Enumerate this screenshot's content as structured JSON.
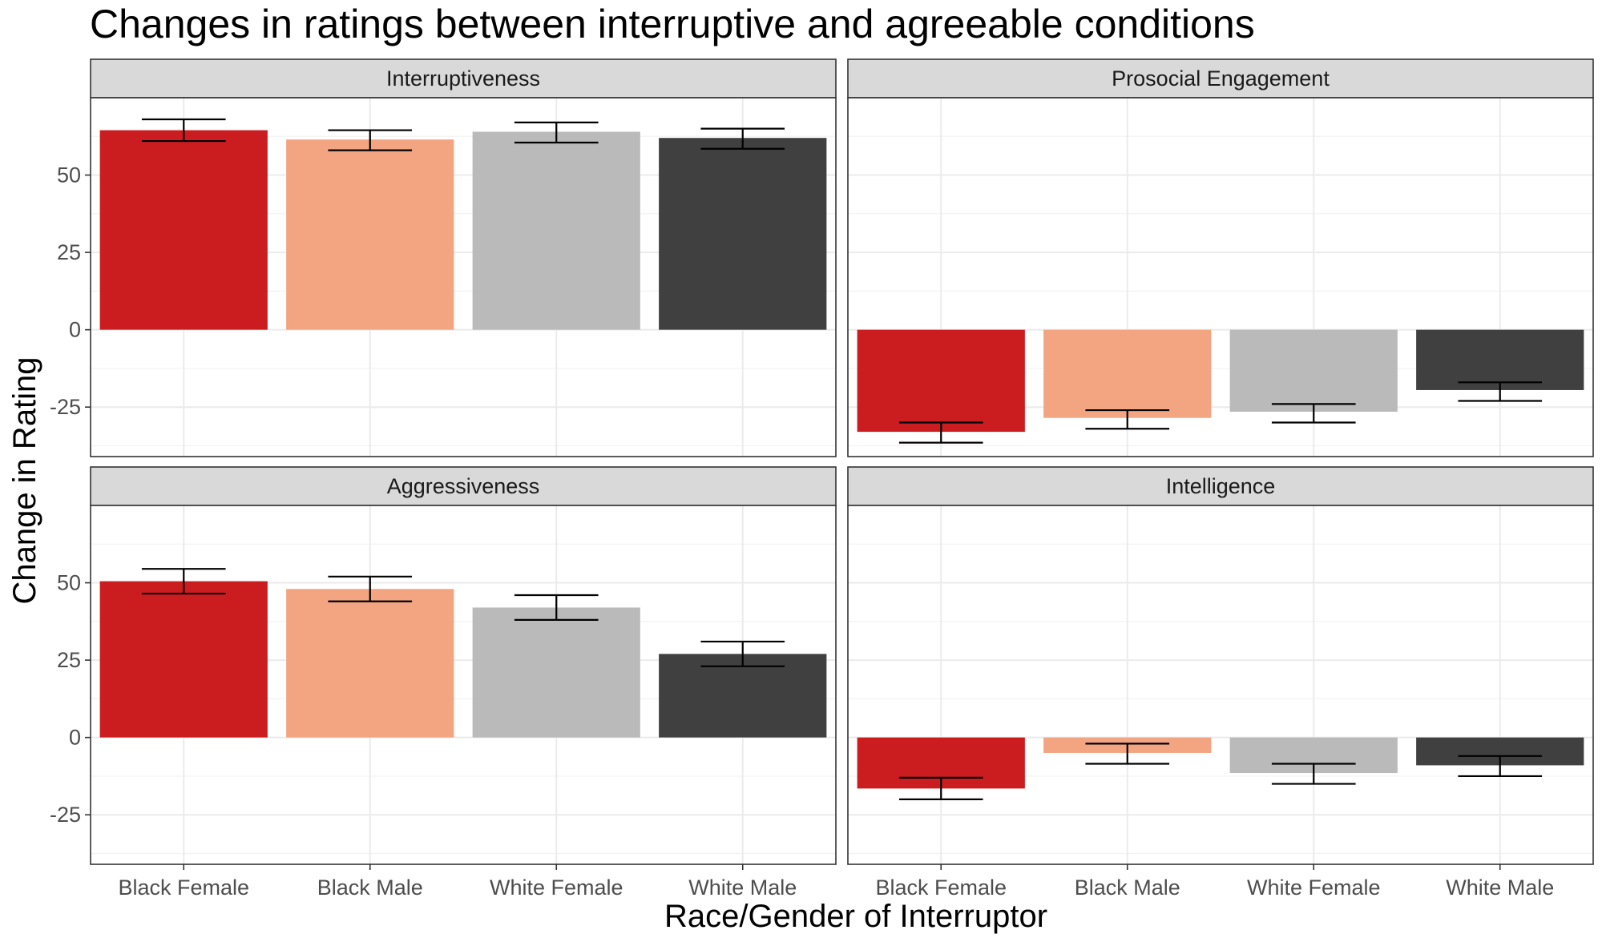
{
  "chart_data": {
    "type": "bar",
    "title": "Changes in ratings between interruptive and agreeable conditions",
    "xlabel": "Race/Gender of Interruptor",
    "ylabel": "Change in Rating",
    "categories": [
      "Black Female",
      "Black Male",
      "White Female",
      "White Male"
    ],
    "colors": [
      "#CB1D20",
      "#F3A582",
      "#BABABA",
      "#404040"
    ],
    "yticks": [
      -25,
      0,
      25,
      50
    ],
    "ylim": [
      -41,
      75
    ],
    "grid": true,
    "legend": "none",
    "panels": [
      {
        "name": "Interruptiveness",
        "values": [
          64.5,
          61.5,
          64,
          62
        ],
        "error_low": [
          61,
          58,
          60.5,
          58.5
        ],
        "error_high": [
          68,
          64.5,
          67,
          65
        ]
      },
      {
        "name": "Prosocial Engagement",
        "values": [
          -33,
          -28.5,
          -26.5,
          -19.5
        ],
        "error_low": [
          -36.5,
          -32,
          -30,
          -23
        ],
        "error_high": [
          -30,
          -26,
          -24,
          -17
        ]
      },
      {
        "name": "Aggressiveness",
        "values": [
          50.5,
          48,
          42,
          27
        ],
        "error_low": [
          46.5,
          44,
          38,
          23
        ],
        "error_high": [
          54.5,
          52,
          46,
          31
        ]
      },
      {
        "name": "Intelligence",
        "values": [
          -16.5,
          -5,
          -11.5,
          -9
        ],
        "error_low": [
          -20,
          -8.5,
          -15,
          -12.5
        ],
        "error_high": [
          -13,
          -2,
          -8.5,
          -6
        ]
      }
    ]
  }
}
